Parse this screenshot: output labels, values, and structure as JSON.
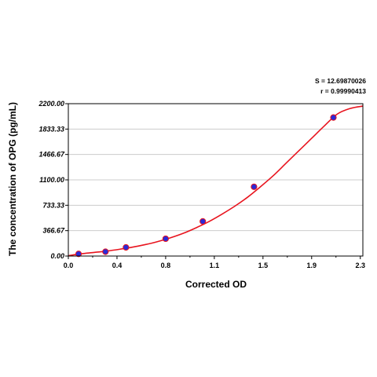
{
  "chart_data": {
    "type": "scatter",
    "title": "",
    "xlabel": "Corrected OD",
    "ylabel": "The concentration of OPG (pg/mL)",
    "xlim": [
      0.0,
      2.3
    ],
    "ylim": [
      0.0,
      2200.0
    ],
    "x_ticks": [
      "0.0",
      "0.4",
      "0.8",
      "1.1",
      "1.5",
      "1.9",
      "2.3"
    ],
    "x_tick_values": [
      0.0,
      0.38,
      0.76,
      1.14,
      1.52,
      1.9,
      2.28
    ],
    "y_ticks": [
      "0.00",
      "366.67",
      "733.33",
      "1100.00",
      "1466.67",
      "1833.33",
      "2200.00"
    ],
    "y_tick_values": [
      0.0,
      366.67,
      733.33,
      1100.0,
      1466.67,
      1833.33,
      2200.0
    ],
    "grid": "horizontal",
    "stats": [
      "S = 12.69870026",
      "r = 0.99990413"
    ],
    "colors": {
      "curve": "#e8141e",
      "point": "#2a2ad8",
      "grid": "#cccccc",
      "axis": "#000000"
    },
    "series": [
      {
        "values": [
          {
            "x": 0.08,
            "y": 31.25
          },
          {
            "x": 0.29,
            "y": 62.5
          },
          {
            "x": 0.45,
            "y": 125
          },
          {
            "x": 0.76,
            "y": 250
          },
          {
            "x": 1.05,
            "y": 500
          },
          {
            "x": 1.45,
            "y": 1000
          },
          {
            "x": 2.07,
            "y": 2000
          }
        ]
      }
    ],
    "fit_curve": {
      "x": [
        0.0,
        0.1,
        0.2,
        0.3,
        0.4,
        0.5,
        0.6,
        0.7,
        0.8,
        0.9,
        1.0,
        1.1,
        1.2,
        1.3,
        1.4,
        1.5,
        1.6,
        1.7,
        1.8,
        1.9,
        2.0,
        2.1,
        2.2,
        2.3
      ],
      "y": [
        5,
        33,
        52,
        72,
        98,
        128,
        165,
        210,
        265,
        330,
        410,
        500,
        605,
        720,
        850,
        1000,
        1160,
        1340,
        1520,
        1700,
        1880,
        2050,
        2130,
        2165
      ]
    }
  }
}
